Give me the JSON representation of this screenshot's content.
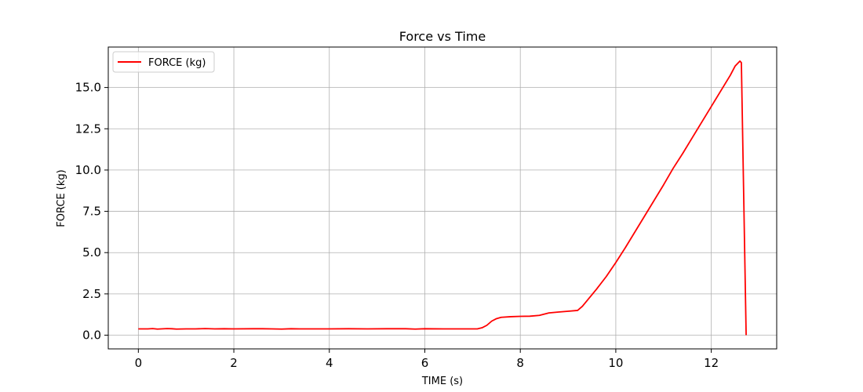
{
  "chart_data": {
    "type": "line",
    "title": "Force vs Time",
    "xlabel": "TIME (s)",
    "ylabel": "FORCE (kg)",
    "xlim": [
      -0.63,
      13.37
    ],
    "ylim": [
      -0.83,
      17.45
    ],
    "xticks": [
      0,
      2,
      4,
      6,
      8,
      10,
      12
    ],
    "yticks": [
      0.0,
      2.5,
      5.0,
      7.5,
      10.0,
      12.5,
      15.0
    ],
    "xtick_labels": [
      "0",
      "2",
      "4",
      "6",
      "8",
      "10",
      "12"
    ],
    "ytick_labels": [
      "0.0",
      "2.5",
      "5.0",
      "7.5",
      "10.0",
      "12.5",
      "15.0"
    ],
    "grid": true,
    "legend": {
      "placement": "top-left",
      "entries": [
        "FORCE (kg)"
      ]
    },
    "series": [
      {
        "name": "FORCE (kg)",
        "color": "#ff0000",
        "x": [
          0.0,
          0.2,
          0.3,
          0.4,
          0.6,
          0.7,
          0.8,
          1.0,
          1.2,
          1.4,
          1.6,
          1.8,
          2.0,
          2.4,
          2.6,
          2.8,
          3.0,
          3.2,
          3.4,
          3.6,
          3.8,
          4.0,
          4.4,
          4.8,
          5.2,
          5.6,
          5.8,
          6.0,
          6.4,
          6.8,
          7.1,
          7.2,
          7.3,
          7.4,
          7.5,
          7.6,
          7.8,
          8.0,
          8.2,
          8.4,
          8.6,
          8.8,
          9.0,
          9.2,
          9.3,
          9.4,
          9.6,
          9.8,
          10.0,
          10.2,
          10.4,
          10.6,
          10.8,
          11.0,
          11.2,
          11.4,
          11.6,
          11.8,
          12.0,
          12.2,
          12.4,
          12.5,
          12.6,
          12.63,
          12.73
        ],
        "y": [
          0.38,
          0.38,
          0.4,
          0.37,
          0.4,
          0.39,
          0.37,
          0.38,
          0.38,
          0.4,
          0.38,
          0.39,
          0.38,
          0.39,
          0.39,
          0.38,
          0.37,
          0.39,
          0.38,
          0.38,
          0.38,
          0.38,
          0.39,
          0.38,
          0.39,
          0.39,
          0.37,
          0.39,
          0.38,
          0.38,
          0.38,
          0.45,
          0.6,
          0.85,
          1.0,
          1.08,
          1.12,
          1.14,
          1.15,
          1.2,
          1.35,
          1.4,
          1.45,
          1.5,
          1.75,
          2.1,
          2.8,
          3.55,
          4.4,
          5.3,
          6.25,
          7.2,
          8.15,
          9.1,
          10.1,
          11.0,
          11.95,
          12.9,
          13.85,
          14.8,
          15.75,
          16.3,
          16.6,
          16.5,
          0.0
        ]
      }
    ]
  }
}
